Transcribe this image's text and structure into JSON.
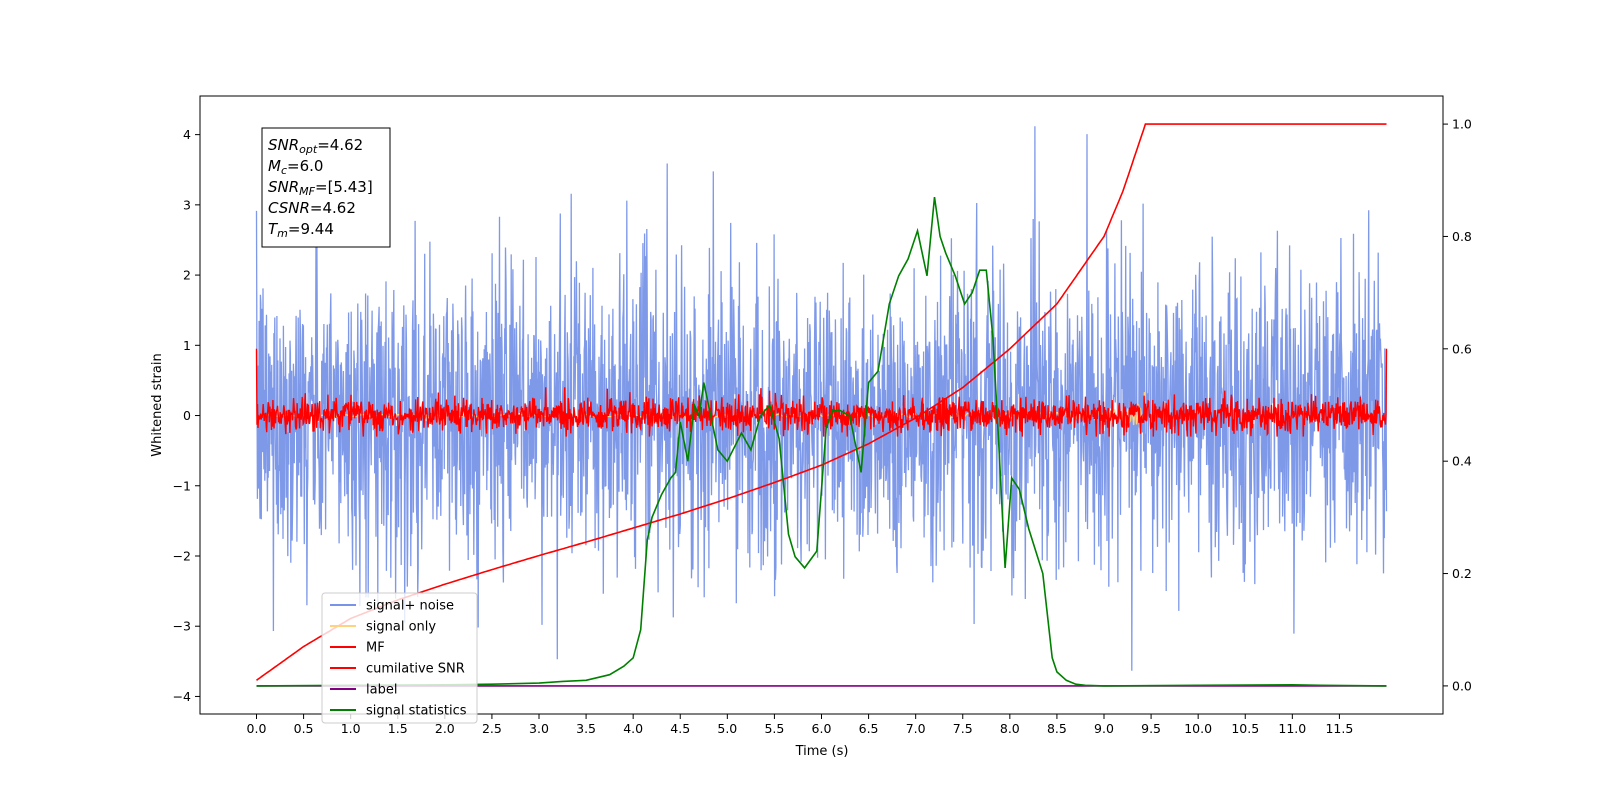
{
  "chart_data": {
    "type": "line",
    "xlabel": "Time (s)",
    "ylabel": "Whitened strain",
    "xlim": [
      -0.6,
      12.6
    ],
    "ylim": [
      -4.25,
      4.55
    ],
    "ylim_right": [
      -0.05,
      1.05
    ],
    "x_ticks": [
      0.0,
      0.5,
      1.0,
      1.5,
      2.0,
      2.5,
      3.0,
      3.5,
      4.0,
      4.5,
      5.0,
      5.5,
      6.0,
      6.5,
      7.0,
      7.5,
      8.0,
      8.5,
      9.0,
      9.5,
      10.0,
      10.5,
      11.0,
      11.5
    ],
    "x_tick_labels": [
      "0.0",
      "0.5",
      "1.0",
      "1.5",
      "2.0",
      "2.5",
      "3.0",
      "3.5",
      "4.0",
      "4.5",
      "5.0",
      "5.5",
      "6.0",
      "6.5",
      "7.0",
      "7.5",
      "8.0",
      "8.5",
      "9.0",
      "9.5",
      "10.0",
      "10.5",
      "11.0",
      "11.5"
    ],
    "y_ticks": [
      -4,
      -3,
      -2,
      -1,
      0,
      1,
      2,
      3,
      4
    ],
    "y_tick_labels": [
      "−4",
      "−3",
      "−2",
      "−1",
      "0",
      "1",
      "2",
      "3",
      "4"
    ],
    "y_right_ticks": [
      0.0,
      0.2,
      0.4,
      0.6,
      0.8,
      1.0
    ],
    "y_right_tick_labels": [
      "0.0",
      "0.2",
      "0.4",
      "0.6",
      "0.8",
      "1.0"
    ],
    "grid": false,
    "legend_position": "lower-left",
    "legend": [
      {
        "label": "signal+ noise",
        "color": "#7893e8"
      },
      {
        "label": "signal only",
        "color": "#ffd27f"
      },
      {
        "label": "MF",
        "color": "#ff0000"
      },
      {
        "label": "cumilative SNR",
        "color": "#ff0000"
      },
      {
        "label": "label",
        "color": "#800080"
      },
      {
        "label": "signal statistics",
        "color": "#008000"
      }
    ],
    "info_box": {
      "lines": [
        {
          "var": "SNR",
          "sub": "opt",
          "value": "=4.62"
        },
        {
          "var": "M",
          "sub": "c",
          "value": "=6.0"
        },
        {
          "var": "SNR",
          "sub": "MF",
          "value": "=[5.43]"
        },
        {
          "var": "CSNR",
          "sub": "",
          "value": "=4.62"
        },
        {
          "var": "T",
          "sub": "m",
          "value": "=9.44"
        }
      ]
    },
    "series": [
      {
        "name": "signal+ noise",
        "axis": "left",
        "color": "#7893e8",
        "style": "dense noise band",
        "x_range": [
          0.0,
          12.0
        ],
        "typical_range": [
          -2.1,
          2.1
        ],
        "extremes": [
          -3.85,
          4.2
        ]
      },
      {
        "name": "signal only",
        "axis": "left",
        "color": "#ffd27f",
        "style": "chirp, visible only near merger",
        "x_range": [
          0.0,
          9.44
        ],
        "peak_amplitude": 0.45
      },
      {
        "name": "MF",
        "axis": "left",
        "color": "#ff0000",
        "style": "noisy band",
        "x_range": [
          0.0,
          12.0
        ],
        "typical_range": [
          -0.25,
          0.3
        ],
        "extremes": [
          -0.3,
          0.95
        ]
      },
      {
        "name": "cumilative SNR",
        "axis": "right",
        "color": "#ff0000",
        "x": [
          0.0,
          0.5,
          1.0,
          1.5,
          2.0,
          2.5,
          3.0,
          3.5,
          4.0,
          4.5,
          5.0,
          5.5,
          6.0,
          6.5,
          7.0,
          7.5,
          8.0,
          8.5,
          9.0,
          9.2,
          9.3,
          9.44,
          12.0
        ],
        "values": [
          0.01,
          0.07,
          0.12,
          0.153,
          0.181,
          0.207,
          0.232,
          0.256,
          0.281,
          0.306,
          0.333,
          0.362,
          0.393,
          0.431,
          0.477,
          0.531,
          0.6,
          0.68,
          0.8,
          0.88,
          0.93,
          1.0,
          1.0
        ]
      },
      {
        "name": "label",
        "axis": "right",
        "color": "#800080",
        "x": [
          0.0,
          12.0
        ],
        "values": [
          0.0,
          0.0
        ]
      },
      {
        "name": "signal statistics",
        "axis": "right",
        "color": "#008000",
        "x": [
          0.0,
          1.0,
          2.0,
          2.5,
          3.0,
          3.25,
          3.5,
          3.75,
          3.9,
          4.0,
          4.08,
          4.15,
          4.2,
          4.3,
          4.4,
          4.45,
          4.5,
          4.58,
          4.65,
          4.7,
          4.75,
          4.8,
          4.9,
          5.0,
          5.15,
          5.25,
          5.35,
          5.45,
          5.55,
          5.65,
          5.72,
          5.82,
          5.95,
          6.05,
          6.12,
          6.2,
          6.3,
          6.42,
          6.5,
          6.6,
          6.72,
          6.82,
          6.92,
          7.02,
          7.12,
          7.2,
          7.26,
          7.32,
          7.42,
          7.52,
          7.6,
          7.68,
          7.75,
          7.82,
          7.88,
          7.95,
          8.02,
          8.1,
          8.2,
          8.35,
          8.45,
          8.5,
          8.6,
          8.7,
          8.8,
          9.0,
          10.0,
          11.0,
          11.3,
          12.0
        ],
        "values": [
          0.0,
          0.001,
          0.002,
          0.003,
          0.005,
          0.008,
          0.01,
          0.02,
          0.035,
          0.05,
          0.1,
          0.26,
          0.3,
          0.34,
          0.37,
          0.38,
          0.47,
          0.4,
          0.5,
          0.48,
          0.54,
          0.5,
          0.42,
          0.4,
          0.45,
          0.42,
          0.48,
          0.5,
          0.44,
          0.27,
          0.23,
          0.21,
          0.24,
          0.46,
          0.49,
          0.49,
          0.48,
          0.38,
          0.54,
          0.56,
          0.68,
          0.73,
          0.76,
          0.81,
          0.73,
          0.87,
          0.8,
          0.77,
          0.73,
          0.68,
          0.7,
          0.74,
          0.74,
          0.62,
          0.44,
          0.21,
          0.37,
          0.35,
          0.28,
          0.2,
          0.05,
          0.025,
          0.01,
          0.003,
          0.001,
          0.0,
          0.001,
          0.002,
          0.001,
          0.0
        ]
      }
    ]
  }
}
